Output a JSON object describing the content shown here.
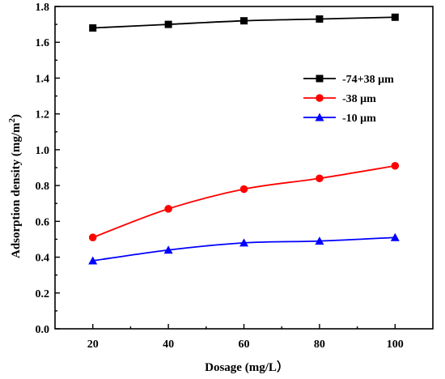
{
  "chart_data": {
    "type": "line",
    "xlabel": "Dosage (mg/L）",
    "ylabel_main": "Adsorption density (mg/m",
    "ylabel_sup": "2",
    "ylabel_close": ")",
    "xlim": [
      10,
      110
    ],
    "ylim": [
      0,
      1.8
    ],
    "x_ticks": [
      20,
      40,
      60,
      80,
      100
    ],
    "y_ticks": [
      0.0,
      0.2,
      0.4,
      0.6,
      0.8,
      1.0,
      1.2,
      1.4,
      1.6,
      1.8
    ],
    "x_tick_labels": [
      "20",
      "40",
      "60",
      "80",
      "100"
    ],
    "y_tick_labels": [
      "0.0",
      "0.2",
      "0.4",
      "0.6",
      "0.8",
      "1.0",
      "1.2",
      "1.4",
      "1.6",
      "1.8"
    ],
    "grid": false,
    "legend_position": "right",
    "x": [
      20,
      40,
      60,
      80,
      100
    ],
    "series": [
      {
        "name": "-74+38 μm",
        "color": "#000000",
        "marker": "square",
        "values": [
          1.68,
          1.7,
          1.72,
          1.73,
          1.74
        ]
      },
      {
        "name": "-38 μm",
        "color": "#ff0000",
        "marker": "circle",
        "values": [
          0.51,
          0.67,
          0.78,
          0.84,
          0.91
        ]
      },
      {
        "name": "-10 μm",
        "color": "#0000ff",
        "marker": "triangle",
        "values": [
          0.38,
          0.44,
          0.48,
          0.49,
          0.51
        ]
      }
    ]
  }
}
